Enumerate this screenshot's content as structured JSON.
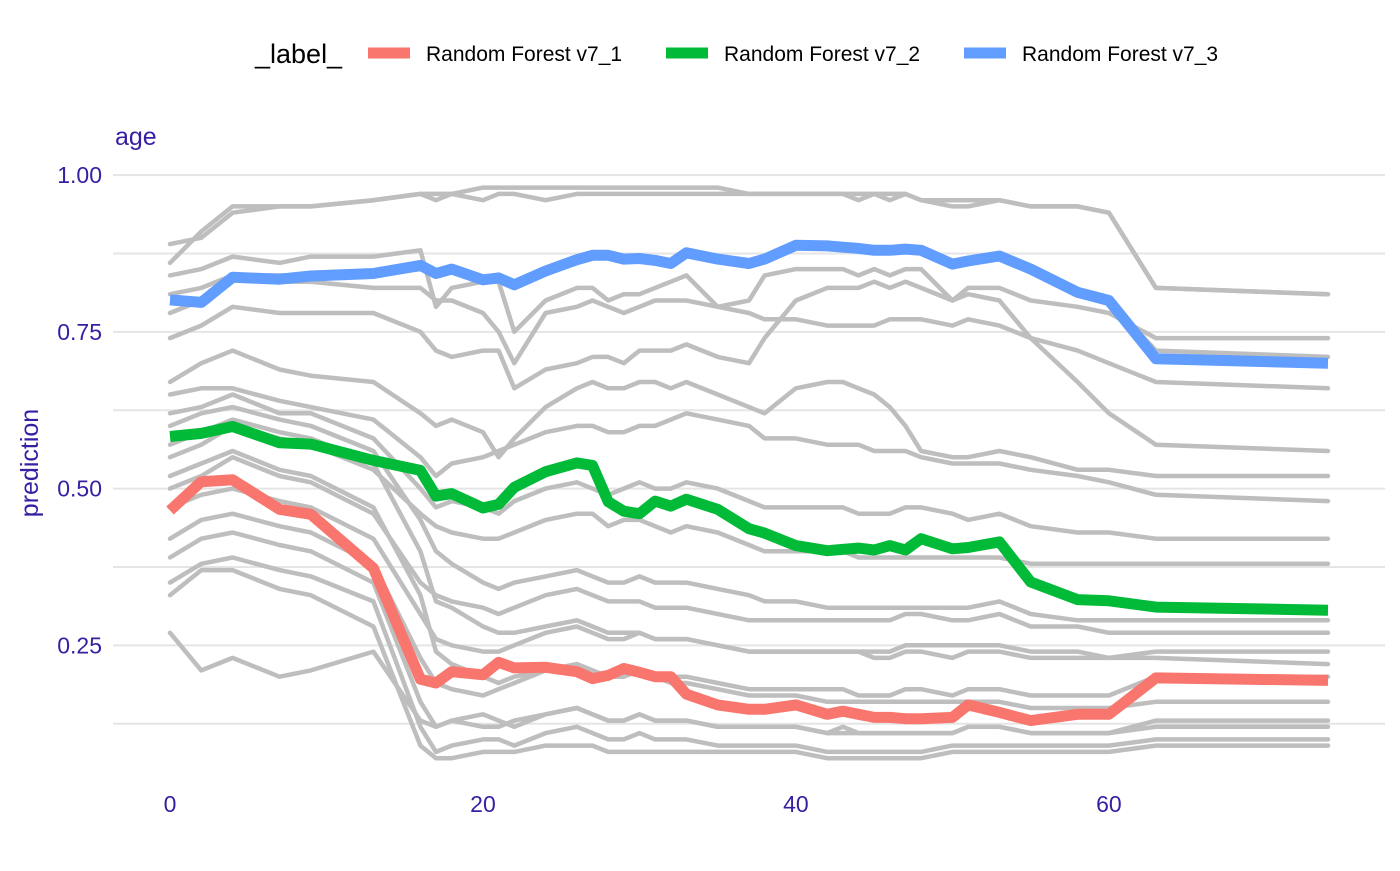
{
  "chart_data": {
    "type": "line",
    "facet_title": "age",
    "xlabel": "",
    "ylabel": "prediction",
    "xlim": [
      0,
      74
    ],
    "ylim": [
      0.04,
      1.04
    ],
    "x_ticks": [
      0,
      20,
      40,
      60
    ],
    "y_ticks": [
      0.25,
      0.5,
      0.75,
      1.0
    ],
    "y_tick_labels": [
      "0.25",
      "0.50",
      "0.75",
      "1.00"
    ],
    "grid": true,
    "legend": {
      "position": "top",
      "title": "_label_",
      "entries": [
        "Random Forest v7_1",
        "Random Forest v7_2",
        "Random Forest v7_3"
      ]
    },
    "colors": {
      "series": [
        "#F8766D",
        "#00BA38",
        "#619CFF"
      ],
      "background_lines": "#BEBEBE",
      "text": "#371EA3",
      "grid": "#E5E5E5"
    },
    "x": [
      0,
      2,
      4,
      7,
      9,
      13,
      16,
      17,
      18,
      20,
      21,
      22,
      24,
      26,
      27,
      28,
      29,
      30,
      31,
      32,
      33,
      35,
      37,
      38,
      40,
      42,
      43,
      44,
      45,
      46,
      47,
      48,
      50,
      51,
      53,
      55,
      58,
      60,
      63,
      74
    ],
    "series": [
      {
        "name": "Random Forest v7_1",
        "values": [
          0.465,
          0.511,
          0.514,
          0.467,
          0.459,
          0.373,
          0.196,
          0.19,
          0.208,
          0.203,
          0.223,
          0.214,
          0.215,
          0.208,
          0.197,
          0.202,
          0.213,
          0.207,
          0.2,
          0.2,
          0.172,
          0.155,
          0.148,
          0.148,
          0.155,
          0.14,
          0.145,
          0.14,
          0.135,
          0.135,
          0.133,
          0.133,
          0.135,
          0.155,
          0.143,
          0.13,
          0.14,
          0.14,
          0.198,
          0.194
        ]
      },
      {
        "name": "Random Forest v7_2",
        "values": [
          0.583,
          0.588,
          0.599,
          0.573,
          0.571,
          0.545,
          0.529,
          0.488,
          0.492,
          0.469,
          0.475,
          0.502,
          0.527,
          0.541,
          0.537,
          0.479,
          0.464,
          0.46,
          0.48,
          0.472,
          0.483,
          0.467,
          0.436,
          0.429,
          0.409,
          0.401,
          0.403,
          0.405,
          0.402,
          0.409,
          0.402,
          0.42,
          0.404,
          0.406,
          0.415,
          0.351,
          0.323,
          0.321,
          0.311,
          0.306
        ]
      },
      {
        "name": "Random Forest v7_3",
        "values": [
          0.801,
          0.797,
          0.837,
          0.834,
          0.839,
          0.843,
          0.856,
          0.843,
          0.85,
          0.833,
          0.836,
          0.825,
          0.847,
          0.865,
          0.872,
          0.872,
          0.866,
          0.867,
          0.864,
          0.859,
          0.876,
          0.866,
          0.859,
          0.866,
          0.888,
          0.887,
          0.885,
          0.883,
          0.88,
          0.88,
          0.882,
          0.88,
          0.858,
          0.863,
          0.871,
          0.85,
          0.813,
          0.8,
          0.707,
          0.7
        ]
      }
    ],
    "background_series": [
      [
        0.78,
        0.8,
        0.84,
        0.84,
        0.84,
        0.84,
        0.85,
        0.84,
        0.85,
        0.83,
        0.84,
        0.83,
        0.85,
        0.87,
        0.87,
        0.87,
        0.87,
        0.87,
        0.86,
        0.86,
        0.88,
        0.87,
        0.86,
        0.87,
        0.89,
        0.89,
        0.89,
        0.88,
        0.88,
        0.88,
        0.88,
        0.88,
        0.86,
        0.86,
        0.87,
        0.85,
        0.81,
        0.8,
        0.72,
        0.71
      ],
      [
        0.86,
        0.91,
        0.95,
        0.95,
        0.95,
        0.96,
        0.97,
        0.96,
        0.97,
        0.96,
        0.97,
        0.97,
        0.96,
        0.97,
        0.97,
        0.97,
        0.97,
        0.97,
        0.97,
        0.97,
        0.97,
        0.97,
        0.97,
        0.97,
        0.97,
        0.97,
        0.97,
        0.96,
        0.97,
        0.96,
        0.97,
        0.96,
        0.95,
        0.95,
        0.96,
        0.95,
        0.95,
        0.94,
        0.82,
        0.81
      ],
      [
        0.89,
        0.9,
        0.94,
        0.95,
        0.95,
        0.96,
        0.97,
        0.97,
        0.97,
        0.98,
        0.98,
        0.98,
        0.98,
        0.98,
        0.98,
        0.98,
        0.98,
        0.98,
        0.98,
        0.98,
        0.98,
        0.98,
        0.97,
        0.97,
        0.97,
        0.97,
        0.97,
        0.97,
        0.97,
        0.97,
        0.97,
        0.96,
        0.96,
        0.96,
        0.96,
        0.95,
        0.95,
        0.94,
        0.82,
        0.81
      ],
      [
        0.84,
        0.85,
        0.87,
        0.86,
        0.87,
        0.87,
        0.88,
        0.79,
        0.82,
        0.83,
        0.83,
        0.75,
        0.8,
        0.82,
        0.82,
        0.8,
        0.81,
        0.81,
        0.82,
        0.83,
        0.84,
        0.79,
        0.8,
        0.84,
        0.85,
        0.85,
        0.85,
        0.84,
        0.85,
        0.84,
        0.85,
        0.85,
        0.8,
        0.82,
        0.82,
        0.8,
        0.79,
        0.78,
        0.74,
        0.74
      ],
      [
        0.81,
        0.82,
        0.84,
        0.83,
        0.83,
        0.82,
        0.82,
        0.8,
        0.8,
        0.78,
        0.75,
        0.7,
        0.78,
        0.79,
        0.8,
        0.79,
        0.78,
        0.79,
        0.8,
        0.8,
        0.8,
        0.79,
        0.78,
        0.77,
        0.77,
        0.76,
        0.76,
        0.76,
        0.76,
        0.77,
        0.77,
        0.77,
        0.76,
        0.77,
        0.76,
        0.74,
        0.72,
        0.7,
        0.67,
        0.66
      ],
      [
        0.74,
        0.76,
        0.79,
        0.78,
        0.78,
        0.78,
        0.75,
        0.72,
        0.71,
        0.72,
        0.72,
        0.66,
        0.69,
        0.7,
        0.71,
        0.71,
        0.7,
        0.72,
        0.72,
        0.72,
        0.73,
        0.71,
        0.7,
        0.74,
        0.8,
        0.82,
        0.82,
        0.82,
        0.83,
        0.82,
        0.83,
        0.82,
        0.8,
        0.81,
        0.8,
        0.74,
        0.67,
        0.62,
        0.57,
        0.56
      ],
      [
        0.67,
        0.7,
        0.72,
        0.69,
        0.68,
        0.67,
        0.62,
        0.6,
        0.61,
        0.59,
        0.55,
        0.58,
        0.63,
        0.66,
        0.67,
        0.66,
        0.66,
        0.67,
        0.67,
        0.66,
        0.67,
        0.65,
        0.63,
        0.62,
        0.66,
        0.67,
        0.67,
        0.66,
        0.65,
        0.63,
        0.6,
        0.56,
        0.55,
        0.55,
        0.56,
        0.55,
        0.53,
        0.53,
        0.52,
        0.52
      ],
      [
        0.65,
        0.66,
        0.66,
        0.64,
        0.63,
        0.61,
        0.55,
        0.52,
        0.54,
        0.55,
        0.56,
        0.57,
        0.59,
        0.6,
        0.6,
        0.59,
        0.59,
        0.6,
        0.6,
        0.61,
        0.62,
        0.61,
        0.6,
        0.58,
        0.58,
        0.57,
        0.57,
        0.57,
        0.56,
        0.56,
        0.56,
        0.55,
        0.54,
        0.54,
        0.54,
        0.53,
        0.52,
        0.51,
        0.49,
        0.48
      ],
      [
        0.62,
        0.63,
        0.65,
        0.62,
        0.62,
        0.58,
        0.5,
        0.47,
        0.48,
        0.47,
        0.46,
        0.48,
        0.5,
        0.51,
        0.5,
        0.49,
        0.5,
        0.51,
        0.5,
        0.5,
        0.51,
        0.5,
        0.48,
        0.47,
        0.47,
        0.47,
        0.47,
        0.46,
        0.46,
        0.46,
        0.47,
        0.47,
        0.46,
        0.45,
        0.46,
        0.44,
        0.43,
        0.43,
        0.42,
        0.42
      ],
      [
        0.55,
        0.57,
        0.6,
        0.58,
        0.57,
        0.53,
        0.46,
        0.44,
        0.43,
        0.42,
        0.42,
        0.43,
        0.45,
        0.46,
        0.46,
        0.44,
        0.45,
        0.45,
        0.44,
        0.43,
        0.44,
        0.43,
        0.41,
        0.4,
        0.4,
        0.4,
        0.4,
        0.39,
        0.39,
        0.39,
        0.39,
        0.39,
        0.39,
        0.39,
        0.39,
        0.38,
        0.38,
        0.38,
        0.38,
        0.38
      ],
      [
        0.5,
        0.52,
        0.55,
        0.52,
        0.51,
        0.46,
        0.35,
        0.33,
        0.32,
        0.31,
        0.3,
        0.31,
        0.33,
        0.34,
        0.33,
        0.32,
        0.32,
        0.32,
        0.31,
        0.31,
        0.31,
        0.3,
        0.29,
        0.29,
        0.29,
        0.29,
        0.29,
        0.29,
        0.29,
        0.29,
        0.3,
        0.3,
        0.29,
        0.29,
        0.3,
        0.28,
        0.28,
        0.27,
        0.27,
        0.27
      ],
      [
        0.47,
        0.49,
        0.5,
        0.48,
        0.47,
        0.42,
        0.3,
        0.26,
        0.25,
        0.24,
        0.24,
        0.25,
        0.27,
        0.28,
        0.27,
        0.26,
        0.26,
        0.27,
        0.26,
        0.26,
        0.26,
        0.25,
        0.24,
        0.24,
        0.24,
        0.24,
        0.24,
        0.24,
        0.23,
        0.23,
        0.24,
        0.24,
        0.23,
        0.24,
        0.24,
        0.23,
        0.23,
        0.23,
        0.24,
        0.24
      ],
      [
        0.42,
        0.45,
        0.46,
        0.44,
        0.43,
        0.38,
        0.23,
        0.19,
        0.18,
        0.17,
        0.18,
        0.19,
        0.21,
        0.22,
        0.21,
        0.2,
        0.21,
        0.21,
        0.2,
        0.2,
        0.2,
        0.19,
        0.18,
        0.18,
        0.18,
        0.18,
        0.18,
        0.17,
        0.17,
        0.17,
        0.18,
        0.18,
        0.17,
        0.18,
        0.18,
        0.17,
        0.17,
        0.17,
        0.2,
        0.2
      ],
      [
        0.39,
        0.42,
        0.43,
        0.41,
        0.4,
        0.35,
        0.16,
        0.12,
        0.13,
        0.14,
        0.13,
        0.12,
        0.14,
        0.15,
        0.14,
        0.13,
        0.13,
        0.14,
        0.13,
        0.13,
        0.13,
        0.12,
        0.12,
        0.12,
        0.12,
        0.11,
        0.11,
        0.11,
        0.11,
        0.11,
        0.11,
        0.11,
        0.11,
        0.12,
        0.12,
        0.11,
        0.11,
        0.11,
        0.13,
        0.13
      ],
      [
        0.35,
        0.38,
        0.39,
        0.37,
        0.36,
        0.32,
        0.12,
        0.08,
        0.09,
        0.1,
        0.1,
        0.09,
        0.11,
        0.12,
        0.11,
        0.1,
        0.1,
        0.11,
        0.1,
        0.1,
        0.1,
        0.09,
        0.09,
        0.09,
        0.09,
        0.08,
        0.08,
        0.08,
        0.08,
        0.08,
        0.08,
        0.08,
        0.09,
        0.09,
        0.09,
        0.09,
        0.09,
        0.09,
        0.1,
        0.1
      ],
      [
        0.33,
        0.37,
        0.37,
        0.34,
        0.33,
        0.28,
        0.09,
        0.07,
        0.07,
        0.08,
        0.08,
        0.08,
        0.09,
        0.09,
        0.09,
        0.08,
        0.08,
        0.08,
        0.08,
        0.08,
        0.08,
        0.08,
        0.08,
        0.08,
        0.08,
        0.07,
        0.07,
        0.07,
        0.07,
        0.07,
        0.07,
        0.07,
        0.08,
        0.08,
        0.08,
        0.08,
        0.08,
        0.08,
        0.09,
        0.09
      ],
      [
        0.27,
        0.21,
        0.23,
        0.2,
        0.21,
        0.24,
        0.13,
        0.12,
        0.13,
        0.12,
        0.12,
        0.13,
        0.14,
        0.15,
        0.14,
        0.13,
        0.13,
        0.14,
        0.13,
        0.13,
        0.13,
        0.12,
        0.12,
        0.12,
        0.12,
        0.11,
        0.12,
        0.11,
        0.11,
        0.11,
        0.11,
        0.11,
        0.11,
        0.12,
        0.12,
        0.11,
        0.11,
        0.11,
        0.12,
        0.12
      ],
      [
        0.57,
        0.59,
        0.61,
        0.59,
        0.58,
        0.54,
        0.4,
        0.32,
        0.31,
        0.28,
        0.27,
        0.27,
        0.28,
        0.29,
        0.28,
        0.27,
        0.27,
        0.27,
        0.26,
        0.26,
        0.26,
        0.25,
        0.24,
        0.24,
        0.24,
        0.24,
        0.24,
        0.24,
        0.24,
        0.24,
        0.25,
        0.25,
        0.25,
        0.25,
        0.25,
        0.24,
        0.24,
        0.23,
        0.23,
        0.22
      ],
      [
        0.6,
        0.62,
        0.63,
        0.61,
        0.6,
        0.56,
        0.45,
        0.4,
        0.38,
        0.35,
        0.34,
        0.35,
        0.36,
        0.37,
        0.36,
        0.35,
        0.35,
        0.36,
        0.35,
        0.35,
        0.35,
        0.34,
        0.33,
        0.32,
        0.32,
        0.31,
        0.31,
        0.31,
        0.31,
        0.31,
        0.31,
        0.31,
        0.31,
        0.31,
        0.32,
        0.3,
        0.29,
        0.29,
        0.29,
        0.29
      ],
      [
        0.52,
        0.54,
        0.56,
        0.53,
        0.52,
        0.47,
        0.33,
        0.24,
        0.22,
        0.2,
        0.19,
        0.2,
        0.21,
        0.22,
        0.21,
        0.2,
        0.2,
        0.21,
        0.2,
        0.19,
        0.19,
        0.18,
        0.17,
        0.17,
        0.17,
        0.16,
        0.16,
        0.16,
        0.16,
        0.16,
        0.16,
        0.16,
        0.16,
        0.16,
        0.16,
        0.15,
        0.15,
        0.15,
        0.16,
        0.16
      ]
    ]
  }
}
